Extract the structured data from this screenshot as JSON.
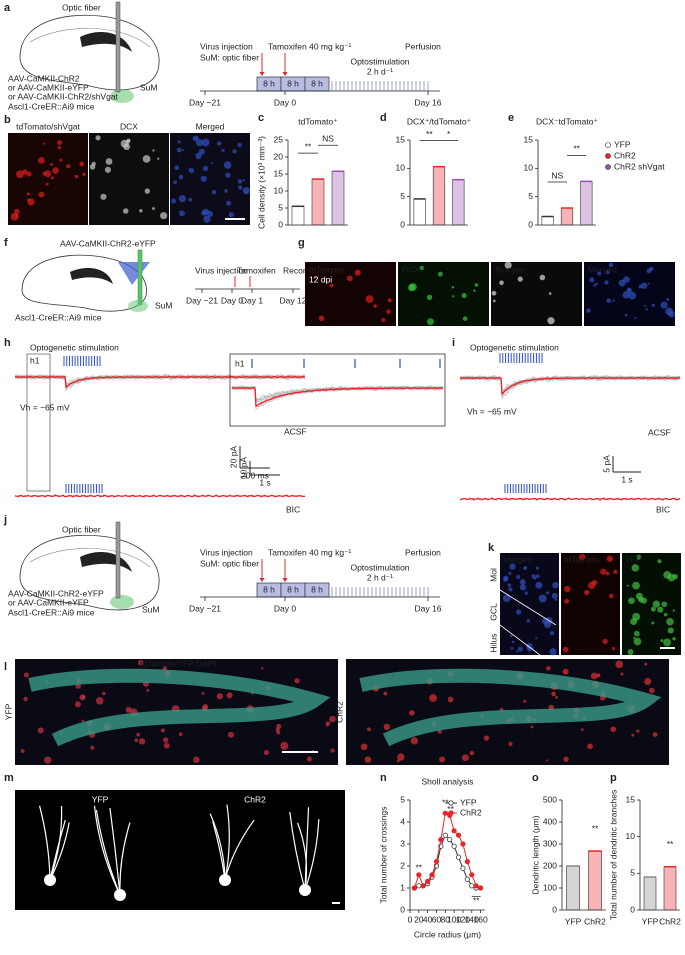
{
  "panels": {
    "a": {
      "label": "a",
      "fiber": "Optic fiber",
      "sum": "SuM",
      "virus": [
        "AAV-CaMKII-ChR2",
        "or AAV-CaMKII-eYFP",
        "or AAV-CaMKII-ChR2/shVgat"
      ],
      "mice": "Ascl1-CreER::Ai9 mice",
      "events": [
        "Virus injection",
        "SuM: optic fiber",
        "Tamoxifen 40 mg kg⁻¹",
        "Perfusion"
      ],
      "blocks": [
        "8 h",
        "8 h",
        "8 h"
      ],
      "stim": "Optostimulation",
      "stim_rate": "2 h d⁻¹",
      "days": [
        "Day −21",
        "Day 0",
        "Day 16"
      ]
    },
    "b": {
      "label": "b",
      "images": [
        "tdTomato/shVgat",
        "DCX",
        "Merged"
      ]
    },
    "f": {
      "label": "f",
      "virus": "AAV-CaMKII-ChR2-eYFP",
      "sum": "SuM",
      "mice": "Ascl1-CreER::Ai9 mice",
      "events": [
        "Virus injection",
        "Tamoxifen",
        "Recording"
      ],
      "days": [
        "Day −21",
        "Day 0",
        "Day 1",
        "Day 12"
      ]
    },
    "g": {
      "label": "g",
      "dpi": "12 dpi",
      "images": [
        "tdTomato",
        "DCX",
        "Biocytin",
        "Merged"
      ]
    },
    "h": {
      "label": "h",
      "stim": "Optogenetic stimulation",
      "inset": "h1",
      "vh": "Vh = −65 mV",
      "acsf": "ACSF",
      "bic": "BIC",
      "scale_y": "10 pA",
      "scale_x": "1 s",
      "inset_label": "h1",
      "inset_scale_y": "20 pA",
      "inset_scale_x": "200 ms"
    },
    "i": {
      "label": "i",
      "stim": "Optogenetic stimulation",
      "vh": "Vh = −65 mV",
      "acsf": "ACSF",
      "bic": "BIC",
      "scale_y": "5 pA",
      "scale_x": "1 s"
    },
    "j": {
      "label": "j",
      "fiber": "Optic fiber",
      "sum": "SuM",
      "virus": [
        "AAV-CaMKII-ChR2-eYFP",
        "or AAV-CaMKII-eYFP"
      ],
      "mice": "Ascl1-CreER::Ai9 mice",
      "events": [
        "Virus injection",
        "SuM: optic fiber",
        "Tamoxifen 40 mg kg⁻¹",
        "Perfusion"
      ],
      "blocks": [
        "8 h",
        "8 h",
        "8 h"
      ],
      "stim": "Optostimulation",
      "stim_rate": "2 h d⁻¹",
      "days": [
        "Day −21",
        "Day 0",
        "Day 16"
      ]
    },
    "k": {
      "label": "k",
      "images": [
        "Merged",
        "tdTomato",
        "YFP"
      ],
      "layers": [
        "Mol",
        "GCL",
        "Hilus"
      ]
    },
    "l": {
      "label": "l",
      "stain": "tdTomato/YFP/DAPI",
      "images": [
        "YFP",
        "ChR2"
      ]
    },
    "m": {
      "label": "m",
      "images": [
        "YFP",
        "ChR2"
      ]
    }
  },
  "chart_data": [
    {
      "type": "bar",
      "panel": "c",
      "title": "tdTomato⁺",
      "ylabel": "Cell density (×10³ mm⁻³)",
      "categories": [
        null,
        null,
        null
      ],
      "values": [
        5.5,
        13.5,
        15.8
      ],
      "colors": [
        "#ffffff",
        "#e8242b",
        "#9b4fb0"
      ],
      "ylim": [
        0,
        25
      ],
      "yticks": [
        0,
        5,
        10,
        15,
        20,
        25
      ],
      "annotations": [
        "**",
        "NS"
      ]
    },
    {
      "type": "bar",
      "panel": "d",
      "title": "DCX⁺/tdTomato⁺",
      "categories": [
        null,
        null,
        null
      ],
      "values": [
        4.6,
        10.3,
        8.0
      ],
      "colors": [
        "#ffffff",
        "#e8242b",
        "#9b4fb0"
      ],
      "ylim": [
        0,
        15
      ],
      "yticks": [
        0,
        5,
        10,
        15
      ],
      "annotations": [
        "**",
        "*"
      ]
    },
    {
      "type": "bar",
      "panel": "e",
      "title": "DCX⁻tdTomato⁺",
      "categories": [
        null,
        null,
        null
      ],
      "values": [
        1.5,
        3.0,
        7.7
      ],
      "colors": [
        "#ffffff",
        "#e8242b",
        "#9b4fb0"
      ],
      "ylim": [
        0,
        15
      ],
      "yticks": [
        0,
        5,
        10,
        15
      ],
      "annotations": [
        "NS",
        "**"
      ],
      "legend": [
        "YFP",
        "ChR2",
        "ChR2 shVgat"
      ]
    },
    {
      "type": "line",
      "panel": "n",
      "title": "Sholl analysis",
      "xlabel": "Circle radius (μm)",
      "ylabel": "Total number of crossings",
      "x": [
        10,
        20,
        30,
        40,
        50,
        60,
        70,
        80,
        90,
        100,
        110,
        120,
        130,
        140,
        150,
        160
      ],
      "series": [
        {
          "name": "YFP",
          "color": "#333333",
          "marker": "open",
          "values": [
            1.0,
            1.1,
            1.1,
            1.2,
            1.5,
            2.0,
            2.9,
            3.4,
            3.2,
            2.9,
            2.4,
            1.9,
            1.4,
            1.1,
            1.0,
            null
          ]
        },
        {
          "name": "ChR2",
          "color": "#e8242b",
          "marker": "filled",
          "values": [
            1.0,
            1.6,
            1.1,
            1.3,
            1.6,
            2.2,
            3.2,
            4.4,
            4.3,
            3.6,
            3.4,
            3.0,
            2.2,
            1.6,
            1.1,
            1.0
          ]
        }
      ],
      "xlim": [
        0,
        170
      ],
      "xticks": [
        0,
        20,
        40,
        60,
        80,
        100,
        120,
        140,
        160
      ],
      "ylim": [
        0,
        5
      ],
      "yticks": [
        0,
        1,
        2,
        3,
        4,
        5
      ],
      "annotations": [
        "**",
        "**",
        "**",
        "**"
      ]
    },
    {
      "type": "bar",
      "panel": "o",
      "ylabel": "Dendritic length (μm)",
      "categories": [
        "YFP",
        "ChR2"
      ],
      "values": [
        200,
        268
      ],
      "colors": [
        "#888888",
        "#e8242b"
      ],
      "ylim": [
        0,
        500
      ],
      "yticks": [
        0,
        100,
        200,
        300,
        400,
        500
      ],
      "annotations": [
        "**"
      ]
    },
    {
      "type": "bar",
      "panel": "p",
      "ylabel": "Total number of dendritic branches",
      "categories": [
        "YFP",
        "ChR2"
      ],
      "values": [
        4.5,
        5.9
      ],
      "colors": [
        "#888888",
        "#e8242b"
      ],
      "ylim": [
        0,
        15
      ],
      "yticks": [
        0,
        5,
        10,
        15
      ],
      "annotations": [
        "**"
      ]
    }
  ]
}
